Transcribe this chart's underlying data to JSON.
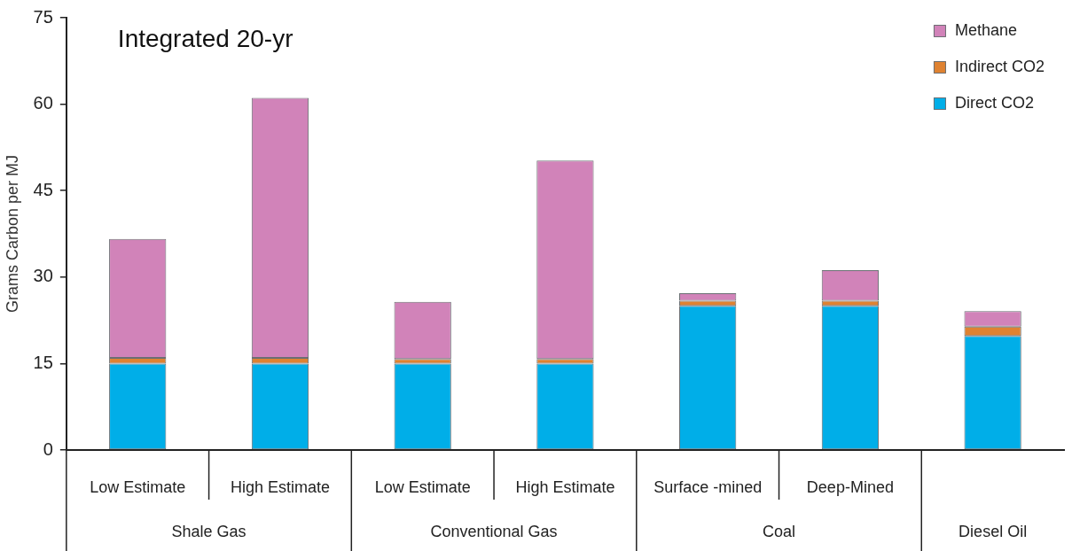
{
  "chart_data": {
    "type": "bar",
    "title": "Integrated 20-yr",
    "ylabel": "Grams Carbon per MJ",
    "categories": [
      "Low Estimate",
      "High Estimate",
      "Low Estimate",
      "High Estimate",
      "Surface -mined",
      "Deep-Mined",
      null
    ],
    "annotations": [
      "Shale Gas",
      "Conventional Gas",
      "Coal",
      "Diesel Oil"
    ],
    "stacked": true,
    "ylim": [
      0,
      75
    ],
    "yticks": [
      0,
      15,
      30,
      45,
      60,
      75
    ],
    "grid": false,
    "legend": "top right",
    "series": [
      {
        "name": "Direct CO2",
        "color": "#00aee8",
        "values": [
          15,
          15,
          15,
          15,
          25,
          25,
          19.8
        ]
      },
      {
        "name": "Indirect CO2",
        "color": "#df8231",
        "values": [
          1,
          1,
          0.8,
          0.8,
          0.9,
          0.9,
          1.6
        ]
      },
      {
        "name": "Methane",
        "color": "#d183b9",
        "values": [
          20.6,
          45.1,
          9.9,
          34.4,
          1.3,
          5.3,
          2.7
        ]
      }
    ]
  }
}
